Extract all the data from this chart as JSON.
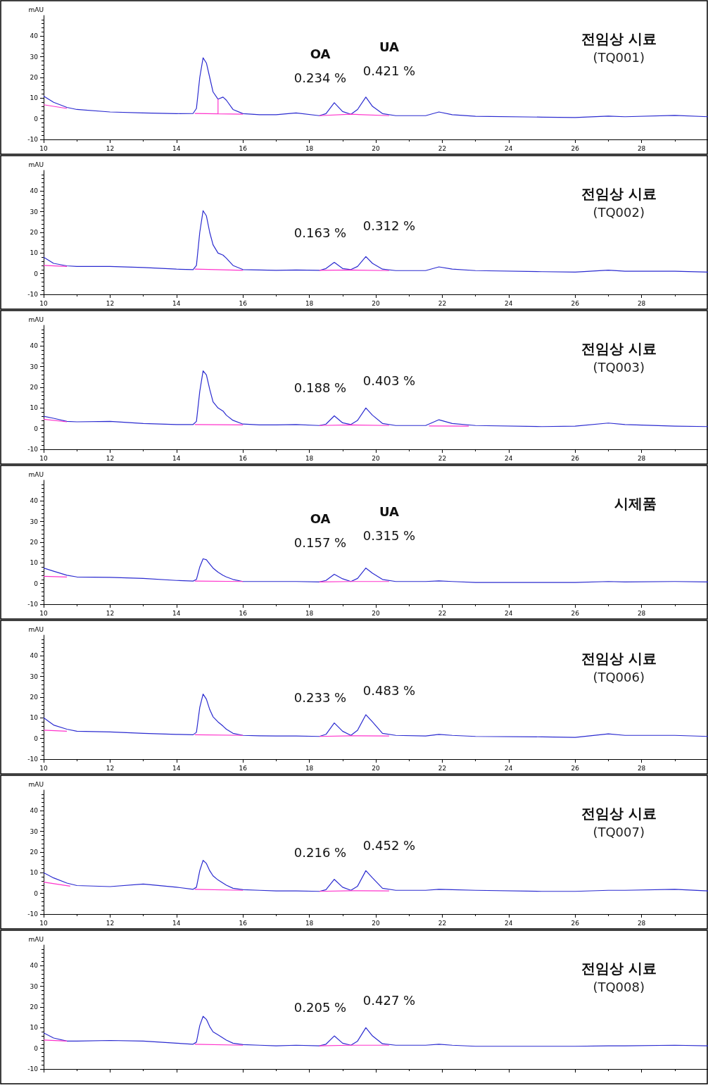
{
  "chart_data": [
    {
      "type": "line",
      "title": "전임상 시료",
      "subtitle": "(TQ001)",
      "ylabel": "mAU",
      "xlim": [
        10,
        30
      ],
      "xticks": [
        10,
        12,
        14,
        16,
        18,
        20,
        22,
        24,
        26,
        28
      ],
      "ylim": [
        -10,
        50
      ],
      "yticks": [
        -10,
        0,
        10,
        20,
        30,
        40
      ],
      "grid": false,
      "marker": "none",
      "x": [
        10,
        10.3,
        10.7,
        11,
        12,
        13,
        14,
        14.5,
        14.6,
        14.7,
        14.8,
        14.9,
        15,
        15.1,
        15.25,
        15.4,
        15.5,
        15.7,
        16,
        16.5,
        17,
        17.6,
        18.3,
        18.5,
        18.75,
        19,
        19.25,
        19.45,
        19.7,
        19.9,
        20.2,
        20.6,
        21.5,
        21.9,
        22.3,
        23,
        25,
        26,
        27,
        27.5,
        29,
        30
      ],
      "annotations": [
        "OA",
        "UA",
        "0.234 %",
        "0.421 %"
      ],
      "series": [
        {
          "color": "#2b2bd0",
          "values": [
            11,
            8,
            5.5,
            4.5,
            3.3,
            2.8,
            2.5,
            2.6,
            5,
            20,
            29.5,
            27,
            20,
            13,
            9.5,
            10.5,
            9,
            4.5,
            2.5,
            2,
            2,
            2.8,
            1.5,
            2.5,
            7.8,
            3.5,
            2.2,
            4.5,
            10.5,
            6,
            2.5,
            1.5,
            1.5,
            3.3,
            2,
            1.2,
            0.8,
            0.6,
            1.3,
            1,
            1.6,
            1
          ]
        },
        {
          "color": "#ff33cc",
          "x": [
            10,
            10.7,
            10.8,
            14.55,
            15.25,
            15.25,
            15.25,
            16,
            16.1,
            18.3,
            19.25,
            20.4
          ],
          "values": [
            6.8,
            5,
            null,
            2.6,
            2.4,
            9.5,
            2.4,
            2.2,
            null,
            1.5,
            2.2,
            1.5
          ]
        }
      ]
    },
    {
      "type": "line",
      "title": "전임상 시료",
      "subtitle": "(TQ002)",
      "ylabel": "mAU",
      "xlim": [
        10,
        30
      ],
      "xticks": [
        10,
        12,
        14,
        16,
        18,
        20,
        22,
        24,
        26,
        28
      ],
      "ylim": [
        -10,
        50
      ],
      "yticks": [
        -10,
        0,
        10,
        20,
        30,
        40
      ],
      "grid": false,
      "marker": "none",
      "x": [
        10,
        10.3,
        10.7,
        11,
        12,
        13,
        14,
        14.5,
        14.6,
        14.7,
        14.8,
        14.9,
        15,
        15.1,
        15.25,
        15.4,
        15.5,
        15.7,
        16,
        16.5,
        17,
        17.6,
        18.3,
        18.5,
        18.75,
        19,
        19.25,
        19.45,
        19.7,
        19.9,
        20.2,
        20.6,
        21.5,
        21.9,
        22.3,
        23,
        25,
        26,
        27,
        27.5,
        29,
        30
      ],
      "annotations": [
        "0.163 %",
        "0.312 %"
      ],
      "series": [
        {
          "color": "#2b2bd0",
          "values": [
            8,
            5,
            3.8,
            3.5,
            3.5,
            3,
            2.2,
            2,
            4,
            20,
            30.5,
            28,
            20,
            14,
            10,
            9,
            7.5,
            4,
            2,
            1.8,
            1.6,
            1.8,
            1.6,
            2.5,
            5.5,
            2.5,
            2,
            3.5,
            8.3,
            5,
            2.2,
            1.5,
            1.5,
            3.3,
            2.2,
            1.5,
            1,
            0.8,
            1.7,
            1.2,
            1.2,
            0.8
          ]
        },
        {
          "color": "#ff33cc",
          "x": [
            10,
            10.7,
            10.8,
            14.55,
            16,
            16.1,
            18.3,
            19.25,
            20.4
          ],
          "values": [
            4,
            3.5,
            null,
            2.2,
            1.6,
            null,
            1.6,
            1.8,
            1.5
          ]
        }
      ]
    },
    {
      "type": "line",
      "title": "전임상 시료",
      "subtitle": "(TQ003)",
      "ylabel": "mAU",
      "xlim": [
        10,
        30
      ],
      "xticks": [
        10,
        12,
        14,
        16,
        18,
        20,
        22,
        24,
        26,
        28
      ],
      "ylim": [
        -10,
        50
      ],
      "yticks": [
        -10,
        0,
        10,
        20,
        30,
        40
      ],
      "grid": false,
      "marker": "none",
      "x": [
        10,
        10.3,
        10.7,
        11,
        12,
        13,
        14,
        14.5,
        14.6,
        14.7,
        14.8,
        14.9,
        15,
        15.1,
        15.25,
        15.4,
        15.5,
        15.7,
        16,
        16.5,
        17,
        17.6,
        18.3,
        18.5,
        18.75,
        19,
        19.25,
        19.45,
        19.7,
        19.9,
        20.2,
        20.6,
        21.5,
        21.9,
        22.3,
        23,
        25,
        26,
        27,
        27.5,
        29,
        30
      ],
      "annotations": [
        "0.188 %",
        "0.403 %"
      ],
      "series": [
        {
          "color": "#2b2bd0",
          "values": [
            6,
            5,
            3.5,
            3.3,
            3.5,
            2.5,
            2,
            2,
            3.5,
            18,
            28,
            26,
            19,
            13,
            10,
            8.5,
            6.5,
            4,
            2.2,
            1.8,
            1.8,
            2,
            1.5,
            2.2,
            6.2,
            2.8,
            2,
            4,
            10,
            6.5,
            2.5,
            1.5,
            1.5,
            4.3,
            2.5,
            1.5,
            1,
            1.2,
            2.7,
            2,
            1.2,
            1
          ]
        },
        {
          "color": "#ff33cc",
          "x": [
            10,
            10.7,
            10.8,
            14.55,
            16,
            16.1,
            18.3,
            19.25,
            20.4,
            20.5,
            21.6,
            22.8
          ],
          "values": [
            4.5,
            3.3,
            null,
            2,
            1.8,
            null,
            1.5,
            1.8,
            1.5,
            null,
            1.3,
            1.2
          ]
        }
      ]
    },
    {
      "type": "line",
      "title": "시제품",
      "ylabel": "mAU",
      "xlim": [
        10,
        30
      ],
      "xticks": [
        10,
        12,
        14,
        16,
        18,
        20,
        22,
        24,
        26,
        28
      ],
      "ylim": [
        -10,
        50
      ],
      "yticks": [
        -10,
        0,
        10,
        20,
        30,
        40
      ],
      "grid": false,
      "marker": "none",
      "x": [
        10,
        10.3,
        10.7,
        11,
        12,
        13,
        14,
        14.5,
        14.6,
        14.7,
        14.8,
        14.9,
        15,
        15.1,
        15.25,
        15.4,
        15.5,
        15.7,
        16,
        16.5,
        17,
        17.6,
        18.3,
        18.5,
        18.75,
        19,
        19.25,
        19.45,
        19.7,
        19.9,
        20.2,
        20.6,
        21.5,
        21.9,
        22.3,
        23,
        25,
        26,
        27,
        27.5,
        29,
        30
      ],
      "annotations": [
        "OA",
        "UA",
        "0.157 %",
        "0.315 %"
      ],
      "series": [
        {
          "color": "#2b2bd0",
          "values": [
            7.5,
            6,
            4,
            3.2,
            3,
            2.5,
            1.5,
            1.2,
            2,
            8,
            12,
            11.5,
            9.5,
            7.5,
            5.5,
            4,
            3.2,
            2,
            1,
            1,
            1,
            1,
            0.8,
            1.5,
            4.5,
            2.3,
            1,
            2.5,
            7.5,
            5,
            2,
            1,
            1,
            1.3,
            1,
            0.5,
            0.5,
            0.5,
            1,
            0.8,
            1,
            0.8
          ]
        },
        {
          "color": "#ff33cc",
          "x": [
            10,
            10.7,
            10.8,
            14.55,
            16,
            16.1,
            18.3,
            19.25,
            20.4
          ],
          "values": [
            3.5,
            3.2,
            null,
            1.2,
            1,
            null,
            0.8,
            1,
            1
          ]
        }
      ]
    },
    {
      "type": "line",
      "title": "전임상 시료",
      "subtitle": "(TQ006)",
      "ylabel": "mAU",
      "xlim": [
        10,
        30
      ],
      "xticks": [
        10,
        12,
        14,
        16,
        18,
        20,
        22,
        24,
        26,
        28
      ],
      "ylim": [
        -10,
        50
      ],
      "yticks": [
        -10,
        0,
        10,
        20,
        30,
        40
      ],
      "grid": false,
      "marker": "none",
      "x": [
        10,
        10.3,
        10.7,
        11,
        12,
        13,
        14,
        14.5,
        14.6,
        14.7,
        14.8,
        14.9,
        15,
        15.1,
        15.25,
        15.4,
        15.5,
        15.7,
        16,
        16.5,
        17,
        17.6,
        18.3,
        18.5,
        18.75,
        19,
        19.25,
        19.45,
        19.7,
        19.9,
        20.2,
        20.6,
        21.5,
        21.9,
        22.3,
        23,
        25,
        26,
        27,
        27.5,
        29,
        30
      ],
      "annotations": [
        "0.233 %",
        "0.483 %"
      ],
      "series": [
        {
          "color": "#2b2bd0",
          "values": [
            10,
            6.5,
            4.5,
            3.5,
            3.2,
            2.5,
            2,
            1.8,
            3,
            15,
            21.5,
            19,
            14,
            10.5,
            8,
            6,
            4.5,
            2.5,
            1.5,
            1.3,
            1.2,
            1.2,
            1,
            2,
            7.5,
            3.5,
            1.5,
            4,
            11.5,
            8,
            2.5,
            1.5,
            1.2,
            2,
            1.5,
            1,
            0.8,
            0.5,
            2.2,
            1.5,
            1.5,
            1
          ]
        },
        {
          "color": "#ff33cc",
          "x": [
            10,
            10.7,
            10.8,
            14.55,
            16,
            16.1,
            18.3,
            19.25,
            20.4
          ],
          "values": [
            4,
            3.5,
            null,
            1.8,
            1.5,
            null,
            1,
            1.3,
            1.2
          ]
        }
      ]
    },
    {
      "type": "line",
      "title": "전임상 시료",
      "subtitle": "(TQ007)",
      "ylabel": "mAU",
      "xlim": [
        10,
        30
      ],
      "xticks": [
        10,
        12,
        14,
        16,
        18,
        20,
        22,
        24,
        26,
        28
      ],
      "ylim": [
        -10,
        50
      ],
      "yticks": [
        -10,
        0,
        10,
        20,
        30,
        40
      ],
      "grid": false,
      "marker": "none",
      "x": [
        10,
        10.3,
        10.7,
        11,
        12,
        13,
        14,
        14.5,
        14.6,
        14.7,
        14.8,
        14.9,
        15,
        15.1,
        15.25,
        15.4,
        15.5,
        15.7,
        16,
        16.5,
        17,
        17.6,
        18.3,
        18.5,
        18.75,
        19,
        19.25,
        19.45,
        19.7,
        19.9,
        20.2,
        20.6,
        21.5,
        21.9,
        22.3,
        23,
        25,
        26,
        27,
        27.5,
        29,
        30
      ],
      "annotations": [
        "0.216 %",
        "0.452 %"
      ],
      "series": [
        {
          "color": "#2b2bd0",
          "values": [
            10,
            7.5,
            5,
            3.8,
            3.3,
            4.5,
            3,
            2,
            3,
            11,
            16,
            14.5,
            11,
            8.5,
            6.5,
            5,
            4,
            2.5,
            1.8,
            1.5,
            1.2,
            1.2,
            1,
            1.8,
            6.8,
            3,
            1.5,
            3.5,
            11,
            7.5,
            2.5,
            1.5,
            1.5,
            2,
            1.8,
            1.5,
            1,
            1,
            1.5,
            1.5,
            2,
            1.2
          ]
        },
        {
          "color": "#ff33cc",
          "x": [
            10,
            10.8,
            10.9,
            14.55,
            16,
            16.1,
            18.3,
            19.25,
            20.4
          ],
          "values": [
            5.5,
            3.5,
            null,
            2,
            1.5,
            null,
            1,
            1.3,
            1.2
          ]
        }
      ]
    },
    {
      "type": "line",
      "title": "전임상 시료",
      "subtitle": "(TQ008)",
      "ylabel": "mAU",
      "xlim": [
        10,
        30
      ],
      "xticks": [
        10,
        12,
        14,
        16,
        18,
        20,
        22,
        24,
        26,
        28
      ],
      "ylim": [
        -10,
        50
      ],
      "yticks": [
        -10,
        0,
        10,
        20,
        30,
        40
      ],
      "grid": false,
      "marker": "none",
      "tick_labels": "y",
      "x": [
        10,
        10.3,
        10.7,
        11,
        12,
        13,
        14,
        14.5,
        14.6,
        14.7,
        14.8,
        14.9,
        15,
        15.1,
        15.25,
        15.4,
        15.5,
        15.7,
        16,
        16.5,
        17,
        17.6,
        18.3,
        18.5,
        18.75,
        19,
        19.25,
        19.45,
        19.7,
        19.9,
        20.2,
        20.6,
        21.5,
        21.9,
        22.3,
        23,
        25,
        26,
        27,
        27.5,
        29,
        30
      ],
      "annotations": [
        "0.205 %",
        "0.427 %"
      ],
      "series": [
        {
          "color": "#2b2bd0",
          "values": [
            7.5,
            5,
            3.5,
            3.5,
            3.8,
            3.5,
            2.5,
            2,
            3,
            11,
            15.5,
            14,
            10.5,
            8,
            6.5,
            5,
            4,
            2.5,
            1.8,
            1.5,
            1.2,
            1.5,
            1.2,
            2,
            6,
            2.5,
            1.5,
            3.5,
            10,
            6,
            2.2,
            1.5,
            1.5,
            2,
            1.5,
            1,
            1,
            1,
            1.2,
            1.2,
            1.5,
            1.2
          ]
        },
        {
          "color": "#ff33cc",
          "x": [
            10,
            10.7,
            10.8,
            14.55,
            16,
            16.1,
            18.3,
            19.25,
            20.4
          ],
          "values": [
            4,
            3.5,
            null,
            2,
            1.5,
            null,
            1.2,
            1.5,
            1.5
          ]
        }
      ]
    }
  ]
}
